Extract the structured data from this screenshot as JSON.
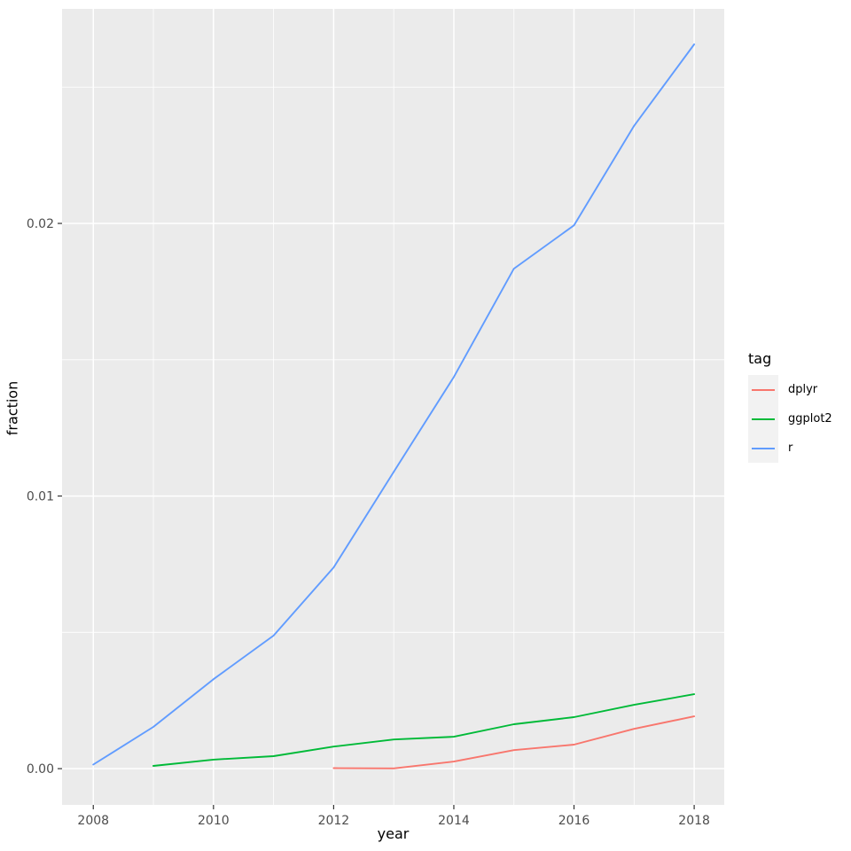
{
  "figure": {
    "background": "#FFFFFF",
    "panel_background": "#EBEBEB",
    "grid_color": "#FFFFFF",
    "tick_mark_color": "#333333",
    "tick_label_color": "#4D4D4D"
  },
  "axes": {
    "x": {
      "title": "year",
      "tick_labels": [
        "2008",
        "2010",
        "2012",
        "2014",
        "2016",
        "2018"
      ],
      "tick_values": [
        2008,
        2010,
        2012,
        2014,
        2016,
        2018
      ],
      "minor_values": [
        2009,
        2011,
        2013,
        2015,
        2017
      ]
    },
    "y": {
      "title": "fraction",
      "tick_labels": [
        "0.00",
        "0.01",
        "0.02"
      ],
      "tick_values": [
        0,
        0.01,
        0.02
      ],
      "minor_values": [
        0.005,
        0.015,
        0.025
      ]
    }
  },
  "legend": {
    "title": "tag",
    "items": [
      {
        "label": "dplyr",
        "color": "#F8766D"
      },
      {
        "label": "ggplot2",
        "color": "#00BA38"
      },
      {
        "label": "r",
        "color": "#619CFF"
      }
    ]
  },
  "chart_data": {
    "type": "line",
    "title": "",
    "xlabel": "year",
    "ylabel": "fraction",
    "xlim": [
      2007.48,
      2018.5
    ],
    "ylim": [
      -0.00133,
      0.02787
    ],
    "grid": true,
    "legend_position": "right",
    "series": [
      {
        "name": "dplyr",
        "color": "#F8766D",
        "x": [
          2012,
          2013,
          2014,
          2015,
          2016,
          2017,
          2018
        ],
        "y": [
          2e-05,
          1e-05,
          0.00026,
          0.00068,
          0.00088,
          0.00146,
          0.00192
        ]
      },
      {
        "name": "ggplot2",
        "color": "#00BA38",
        "x": [
          2009,
          2010,
          2011,
          2012,
          2013,
          2014,
          2015,
          2016,
          2017,
          2018
        ],
        "y": [
          0.0001,
          0.00033,
          0.00046,
          0.00081,
          0.00107,
          0.00117,
          0.00163,
          0.00189,
          0.00234,
          0.00273
        ]
      },
      {
        "name": "r",
        "color": "#619CFF",
        "x": [
          2008,
          2009,
          2010,
          2011,
          2012,
          2013,
          2014,
          2015,
          2016,
          2017,
          2018
        ],
        "y": [
          0.00015,
          0.00153,
          0.00328,
          0.00488,
          0.00738,
          0.01089,
          0.01437,
          0.01834,
          0.01993,
          0.02358,
          0.02657
        ]
      }
    ]
  }
}
